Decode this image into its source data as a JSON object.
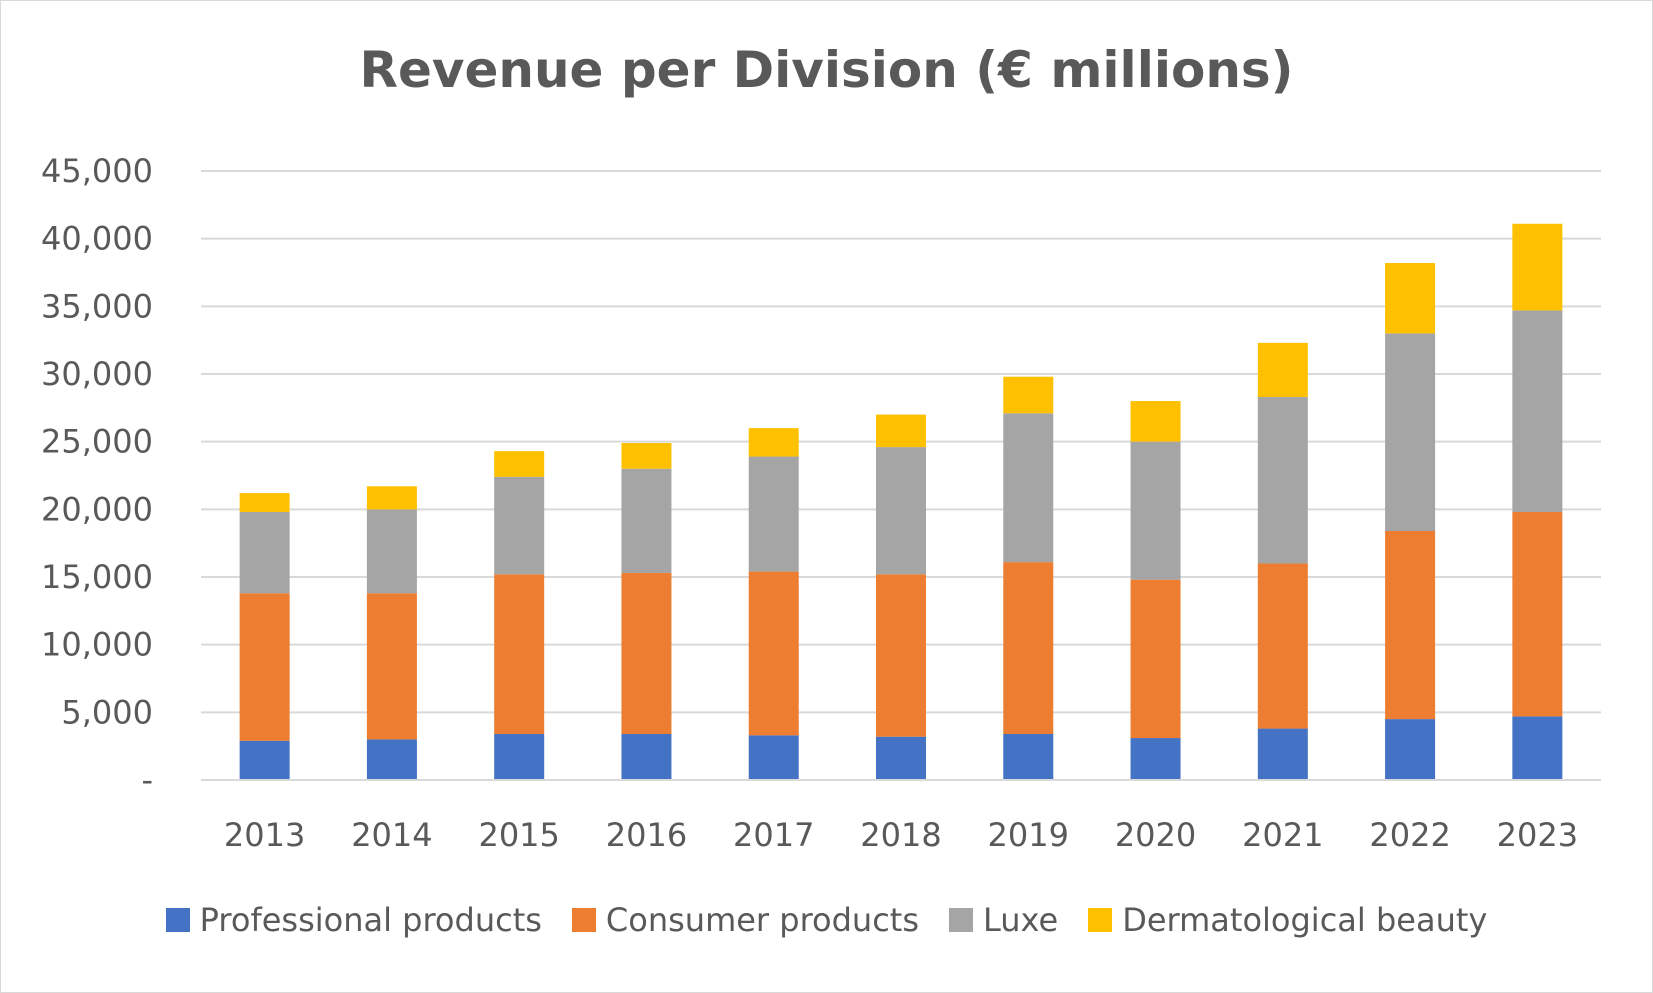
{
  "chart_data": {
    "type": "bar",
    "stacked": true,
    "title": "Revenue per Division (€ millions)",
    "xlabel": "",
    "ylabel": "",
    "categories": [
      "2013",
      "2014",
      "2015",
      "2016",
      "2017",
      "2018",
      "2019",
      "2020",
      "2021",
      "2022",
      "2023"
    ],
    "ylim": [
      0,
      45000
    ],
    "yticks": [
      0,
      5000,
      10000,
      15000,
      20000,
      25000,
      30000,
      35000,
      40000,
      45000
    ],
    "ytick_labels": [
      "-",
      "5,000",
      "10,000",
      "15,000",
      "20,000",
      "25,000",
      "30,000",
      "35,000",
      "40,000",
      "45,000"
    ],
    "grid": true,
    "legend_position": "bottom",
    "series": [
      {
        "name": "Professional products",
        "color": "#4472c4",
        "values": [
          2900,
          3000,
          3400,
          3400,
          3300,
          3200,
          3400,
          3100,
          3800,
          4500,
          4700
        ]
      },
      {
        "name": "Consumer products",
        "color": "#ed7d31",
        "values": [
          10900,
          10800,
          11800,
          11900,
          12100,
          12000,
          12700,
          11700,
          12200,
          13900,
          15100
        ]
      },
      {
        "name": "Luxe",
        "color": "#a5a5a5",
        "values": [
          6000,
          6200,
          7200,
          7700,
          8500,
          9400,
          11000,
          10200,
          12300,
          14600,
          14900
        ]
      },
      {
        "name": "Dermatological beauty",
        "color": "#ffc000",
        "values": [
          1400,
          1700,
          1900,
          1900,
          2100,
          2400,
          2700,
          3000,
          4000,
          5200,
          6400
        ]
      }
    ]
  }
}
